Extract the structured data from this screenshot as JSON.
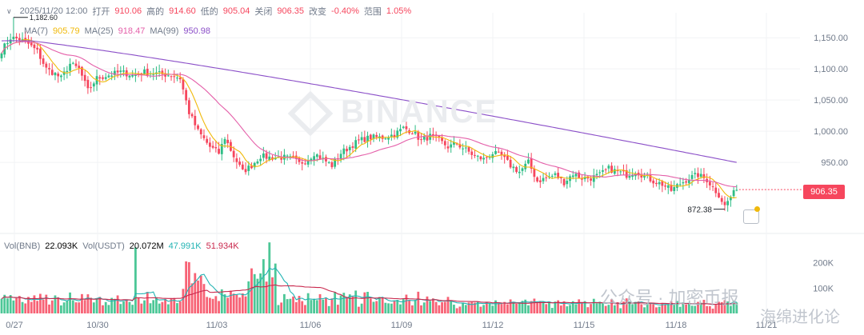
{
  "info_bar": {
    "datetime": "2025/11/20 12:00",
    "open_label": "打开",
    "open": "910.06",
    "high_label": "高的",
    "high": "914.60",
    "low_label": "低的",
    "low": "905.04",
    "close_label": "关闭",
    "close": "906.35",
    "change_label": "改变",
    "change": "-0.40%",
    "range_label": "范围",
    "range": "1.05%"
  },
  "ma_legend": {
    "ma7_label": "MA(7)",
    "ma7": "905.79",
    "ma7_color": "#f0b90b",
    "ma25_label": "MA(25)",
    "ma25": "918.47",
    "ma25_color": "#e45fa9",
    "ma99_label": "MA(99)",
    "ma99": "950.98",
    "ma99_color": "#8b4fc8"
  },
  "vol_legend": {
    "vol_label": "Vol(BNB)",
    "vol": "22.093K",
    "usdt_label": "Vol(USDT)",
    "usdt": "20.072M",
    "ma_a": "47.991K",
    "ma_a_color": "#22b3b3",
    "ma_b": "51.934K",
    "ma_b_color": "#c9284d"
  },
  "current_price": "906.35",
  "high_marker": "1,182.60",
  "low_marker": "872.38",
  "watermark": "BINANCE",
  "overlay_text_1": "公众号 · 加密币报",
  "overlay_text_2": "海绵进化论",
  "colors": {
    "up": "#2ebd85",
    "down": "#f6465d",
    "grid": "#f2f3f5",
    "axis_text": "#707a8a"
  },
  "chart_data": {
    "type": "candlestick",
    "x_ticks": [
      "0/27",
      "10/30",
      "11/03",
      "11/06",
      "11/09",
      "11/12",
      "11/15",
      "11/18",
      "11/21"
    ],
    "price_ticks": [
      "1,150.00",
      "1,100.00",
      "1,050.00",
      "1,000.00",
      "950.00"
    ],
    "price_tick_values": [
      1150,
      1100,
      1050,
      1000,
      950
    ],
    "price_range": [
      845,
      1190
    ],
    "volume_ticks": [
      "200K",
      "100K"
    ],
    "volume_tick_values": [
      200000,
      100000
    ],
    "volume_range": [
      0,
      290000
    ],
    "close_anchors": [
      [
        0,
        1130
      ],
      [
        3,
        1150
      ],
      [
        6,
        1148
      ],
      [
        9,
        1140
      ],
      [
        12,
        1128
      ],
      [
        15,
        1100
      ],
      [
        18,
        1092
      ],
      [
        20,
        1085
      ],
      [
        23,
        1108
      ],
      [
        26,
        1100
      ],
      [
        29,
        1065
      ],
      [
        32,
        1085
      ],
      [
        36,
        1090
      ],
      [
        40,
        1095
      ],
      [
        44,
        1090
      ],
      [
        48,
        1095
      ],
      [
        53,
        1092
      ],
      [
        57,
        1090
      ],
      [
        60,
        1085
      ],
      [
        63,
        1030
      ],
      [
        66,
        1000
      ],
      [
        70,
        975
      ],
      [
        73,
        965
      ],
      [
        75,
        990
      ],
      [
        78,
        960
      ],
      [
        81,
        935
      ],
      [
        84,
        945
      ],
      [
        87,
        960
      ],
      [
        90,
        958
      ],
      [
        95,
        958
      ],
      [
        98,
        955
      ],
      [
        100,
        948
      ],
      [
        103,
        955
      ],
      [
        105,
        965
      ],
      [
        108,
        955
      ],
      [
        111,
        945
      ],
      [
        114,
        965
      ],
      [
        117,
        975
      ],
      [
        120,
        985
      ],
      [
        124,
        990
      ],
      [
        128,
        990
      ],
      [
        132,
        995
      ],
      [
        135,
        1005
      ],
      [
        138,
        1000
      ],
      [
        141,
        985
      ],
      [
        144,
        992
      ],
      [
        147,
        985
      ],
      [
        150,
        975
      ],
      [
        153,
        980
      ],
      [
        156,
        970
      ],
      [
        159,
        960
      ],
      [
        162,
        955
      ],
      [
        165,
        965
      ],
      [
        168,
        960
      ],
      [
        171,
        945
      ],
      [
        174,
        935
      ],
      [
        177,
        950
      ],
      [
        180,
        920
      ],
      [
        183,
        925
      ],
      [
        186,
        930
      ],
      [
        189,
        918
      ],
      [
        192,
        932
      ],
      [
        195,
        925
      ],
      [
        198,
        925
      ],
      [
        201,
        930
      ],
      [
        204,
        940
      ],
      [
        207,
        935
      ],
      [
        210,
        930
      ],
      [
        213,
        936
      ],
      [
        216,
        928
      ],
      [
        219,
        920
      ],
      [
        222,
        915
      ],
      [
        225,
        905
      ],
      [
        228,
        916
      ],
      [
        231,
        925
      ],
      [
        234,
        930
      ],
      [
        237,
        922
      ],
      [
        239,
        910
      ],
      [
        241,
        898
      ],
      [
        243,
        880
      ],
      [
        245,
        895
      ],
      [
        247,
        906
      ]
    ],
    "ma_periods": [
      7,
      25,
      99
    ]
  }
}
